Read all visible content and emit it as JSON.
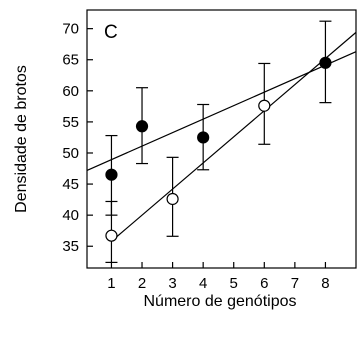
{
  "chart_data": {
    "type": "scatter",
    "panel_label": "C",
    "title": "",
    "xlabel": "Número de genótipos",
    "ylabel": "Densidade de brotos",
    "xlim": [
      0.2,
      9.0
    ],
    "ylim": [
      31.5,
      73.0
    ],
    "x_ticks": [
      1,
      2,
      3,
      4,
      5,
      6,
      7,
      8
    ],
    "y_ticks": [
      35,
      40,
      45,
      50,
      55,
      60,
      65,
      70
    ],
    "grid": false,
    "legend": "none",
    "series": [
      {
        "marker": "filled-circle",
        "color": "#000000",
        "points": [
          {
            "x": 1,
            "y": 46.5,
            "err_low": 40.0,
            "err_high": 52.8
          },
          {
            "x": 2,
            "y": 54.3,
            "err_low": 48.3,
            "err_high": 60.5
          },
          {
            "x": 4,
            "y": 52.5,
            "err_low": 47.3,
            "err_high": 57.8
          },
          {
            "x": 8,
            "y": 64.5,
            "err_low": 58.1,
            "err_high": 71.2
          }
        ],
        "trend": {
          "x": [
            0.2,
            9.0
          ],
          "y": [
            47.2,
            66.3
          ]
        }
      },
      {
        "marker": "open-circle",
        "color": "#000000",
        "points": [
          {
            "x": 1,
            "y": 36.7,
            "err_low": 32.4,
            "err_high": 42.2
          },
          {
            "x": 3,
            "y": 42.6,
            "err_low": 36.6,
            "err_high": 49.3
          },
          {
            "x": 6,
            "y": 57.6,
            "err_low": 51.4,
            "err_high": 64.4
          }
        ],
        "trend": {
          "x": [
            1.0,
            9.0
          ],
          "y": [
            35.8,
            69.4
          ]
        }
      }
    ]
  }
}
